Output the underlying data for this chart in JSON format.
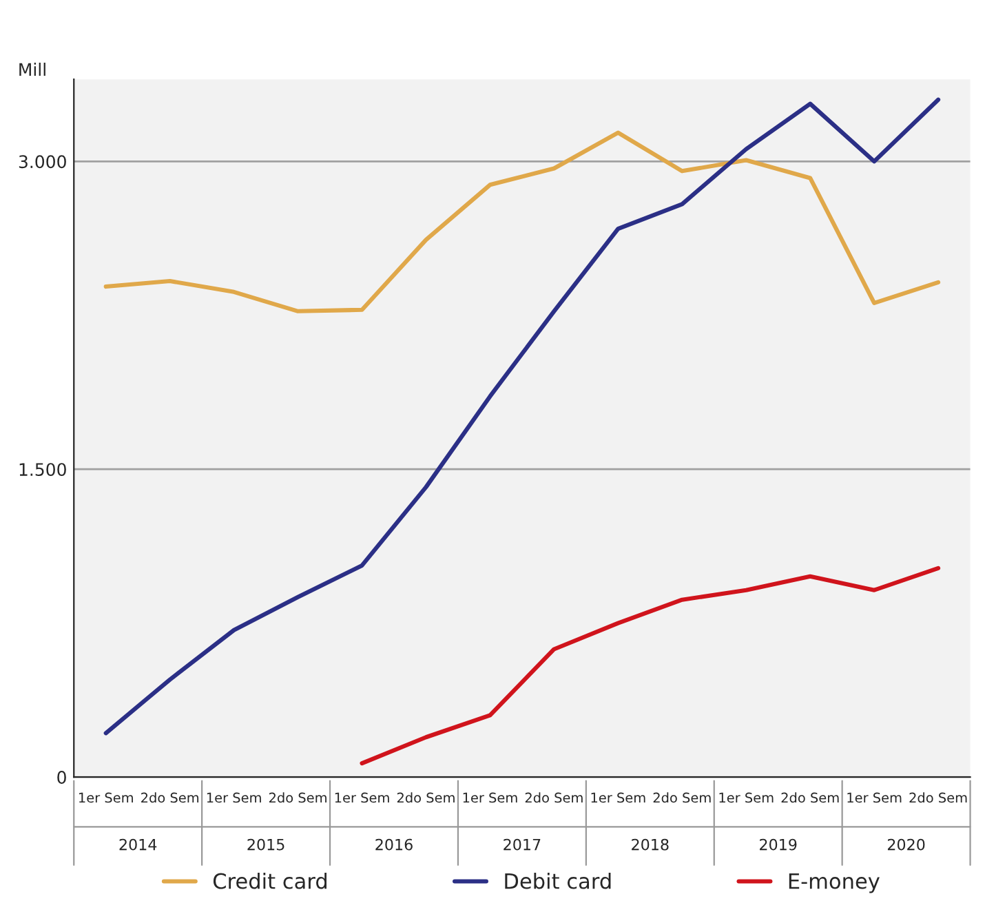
{
  "chart_data": {
    "type": "line",
    "ylabel": "Mill",
    "categories": [
      "1er Sem",
      "2do Sem",
      "1er Sem",
      "2do Sem",
      "1er Sem",
      "2do Sem",
      "1er Sem",
      "2do Sem",
      "1er Sem",
      "2do Sem",
      "1er Sem",
      "2do Sem",
      "1er Sem",
      "2do Sem"
    ],
    "annotations": [
      "2014",
      "2015",
      "2016",
      "2017",
      "2018",
      "2019",
      "2020"
    ],
    "series": [
      {
        "name": "Credit card",
        "color": "#e0a84a",
        "values": [
          2390,
          2417,
          2364,
          2270,
          2277,
          2618,
          2886,
          2966,
          3140,
          2953,
          3006,
          2919,
          2310,
          2411
        ]
      },
      {
        "name": "Debit card",
        "color": "#2b2f86",
        "values": [
          214,
          475,
          716,
          877,
          1031,
          1413,
          1855,
          2270,
          2672,
          2792,
          3060,
          3281,
          3000,
          3301
        ]
      },
      {
        "name": "E-money",
        "color": "#d0141c",
        "values": [
          null,
          null,
          null,
          null,
          67,
          194,
          301,
          623,
          750,
          864,
          911,
          978,
          911,
          1018
        ]
      }
    ],
    "ylim": [
      0,
      3400
    ],
    "yticks": [
      {
        "value": 0,
        "label": "0"
      },
      {
        "value": 1500,
        "label": "1.500"
      },
      {
        "value": 3000,
        "label": "3.000"
      }
    ],
    "grid": "y",
    "legend": "bottom",
    "marker": "none",
    "line_style": "solid"
  }
}
